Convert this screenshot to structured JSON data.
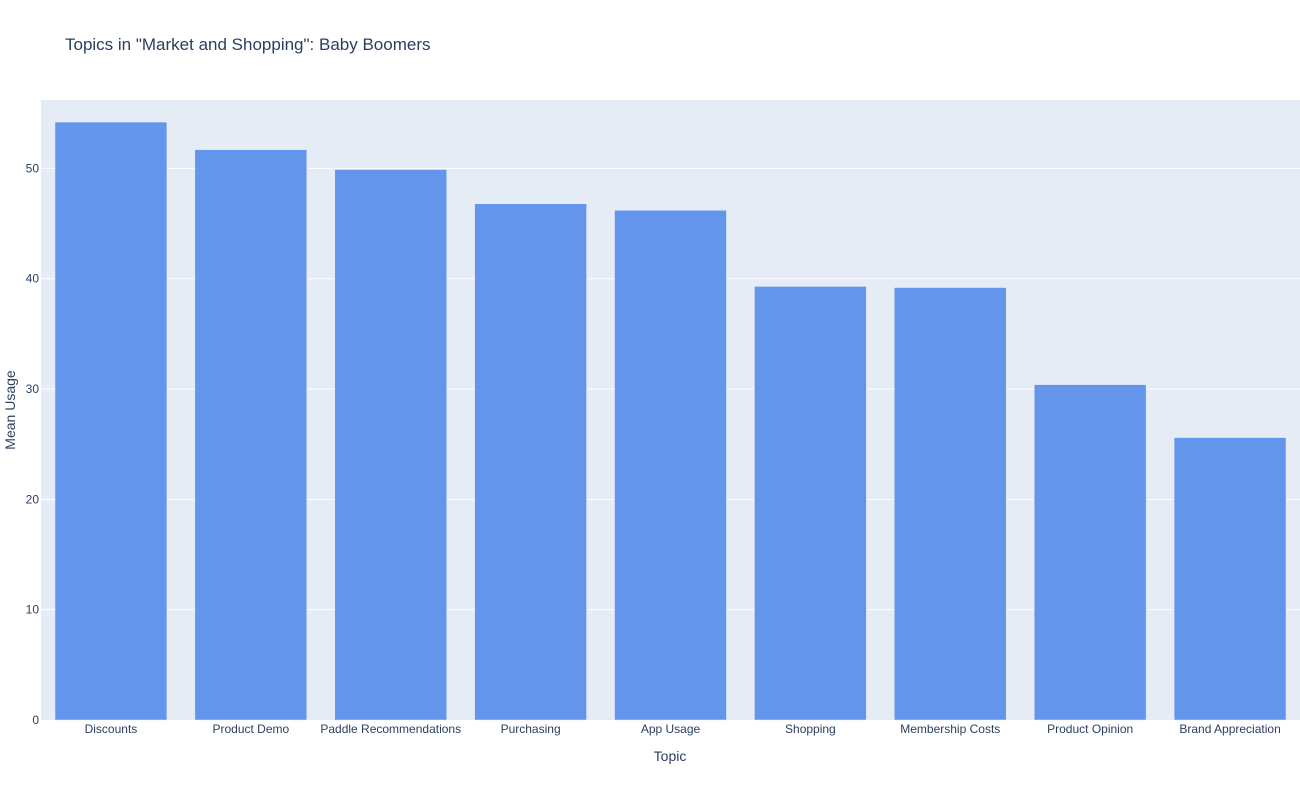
{
  "chart_data": {
    "type": "bar",
    "title": "Topics in \"Market and Shopping\": Baby Boomers",
    "xlabel": "Topic",
    "ylabel": "Mean Usage",
    "categories": [
      "Discounts",
      "Product Demo",
      "Paddle Recommendations",
      "Purchasing",
      "App Usage",
      "Shopping",
      "Membership Costs",
      "Product Opinion",
      "Brand Appreciation"
    ],
    "values": [
      54.2,
      51.7,
      49.9,
      46.8,
      46.2,
      39.3,
      39.2,
      30.4,
      25.6
    ],
    "ylim": [
      0,
      56.2
    ],
    "yticks": [
      0,
      10,
      20,
      30,
      40,
      50
    ],
    "grid": true,
    "colors": {
      "bar": "#6495ed",
      "plot_bg": "#e5ecf6",
      "grid": "#ffffff",
      "text": "#2a3f5f"
    }
  }
}
